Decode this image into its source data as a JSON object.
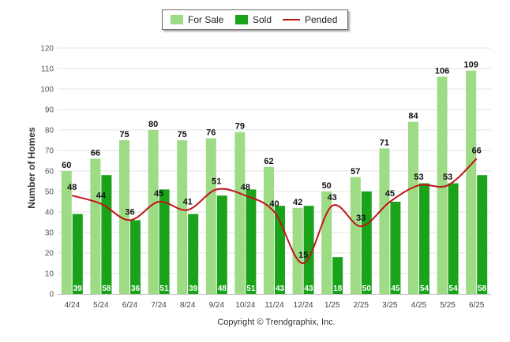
{
  "chart_data": {
    "type": "bar",
    "categories": [
      "4/24",
      "5/24",
      "6/24",
      "7/24",
      "8/24",
      "9/24",
      "10/24",
      "11/24",
      "12/24",
      "1/25",
      "2/25",
      "3/25",
      "4/25",
      "5/25",
      "6/25"
    ],
    "series": [
      {
        "name": "For Sale",
        "type": "bar",
        "color": "#9ddb84",
        "values": [
          60,
          66,
          75,
          80,
          75,
          76,
          79,
          62,
          42,
          50,
          57,
          71,
          84,
          106,
          109
        ]
      },
      {
        "name": "Sold",
        "type": "bar",
        "color": "#1aa31a",
        "values": [
          39,
          58,
          36,
          51,
          39,
          48,
          51,
          43,
          43,
          18,
          50,
          45,
          54,
          54,
          58
        ]
      },
      {
        "name": "Pended",
        "type": "line",
        "color": "#c0141a",
        "values": [
          48,
          44,
          36,
          45,
          41,
          51,
          48,
          40,
          15,
          43,
          33,
          45,
          53,
          53,
          66
        ]
      }
    ],
    "ylabel": "Number of Homes",
    "xlabel": "",
    "ylim": [
      0,
      120
    ],
    "yticks": [
      0,
      10,
      20,
      30,
      40,
      50,
      60,
      70,
      80,
      90,
      100,
      110,
      120
    ],
    "grid": true,
    "legend": "top-center",
    "footer": "Copyright © Trendgraphix, Inc."
  }
}
